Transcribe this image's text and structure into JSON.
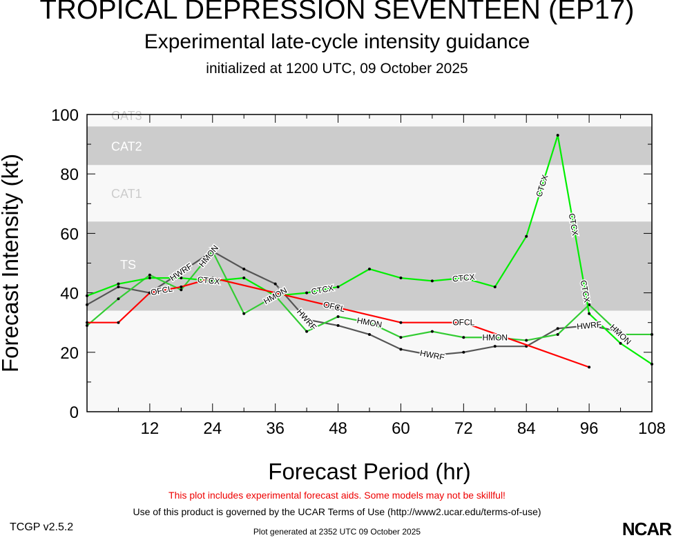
{
  "header": {
    "title": "TROPICAL DEPRESSION SEVENTEEN (EP17)",
    "subtitle": "Experimental late-cycle intensity guidance",
    "init": "initialized at 1200 UTC, 09 October 2025"
  },
  "footer": {
    "warning": "This plot includes experimental forecast aids. Some models may not be skillful!",
    "terms": "Use of this product is governed by the UCAR Terms of Use (http://www2.ucar.edu/terms-of-use)",
    "generated": "Plot generated at 2352 UTC   09 October 2025",
    "version": "TCGP v2.5.2",
    "logo": "NCAR"
  },
  "chart_data": {
    "type": "line",
    "xlabel": "Forecast Period (hr)",
    "ylabel": "Forecast Intensity (kt)",
    "xlim": [
      0,
      108
    ],
    "ylim": [
      0,
      100
    ],
    "xticks": [
      12,
      24,
      36,
      48,
      60,
      72,
      84,
      96,
      108
    ],
    "yticks": [
      0,
      20,
      40,
      60,
      80,
      100
    ],
    "bands": [
      {
        "label": "TS",
        "from": 34,
        "to": 64,
        "color": "#cccccc"
      },
      {
        "label": "CAT1",
        "from": 64,
        "to": 83,
        "color": "#f8f8f8"
      },
      {
        "label": "CAT2",
        "from": 83,
        "to": 96,
        "color": "#cccccc"
      },
      {
        "label": "CAT3",
        "from": 96,
        "to": 100,
        "color": "#f8f8f8"
      }
    ],
    "x": [
      0,
      6,
      12,
      18,
      24,
      30,
      36,
      42,
      48,
      54,
      60,
      66,
      72,
      78,
      84,
      90,
      96,
      102,
      108
    ],
    "series": [
      {
        "name": "HWRF",
        "color": "#555555",
        "values": [
          36,
          42,
          40,
          47,
          54,
          48,
          43,
          31,
          29,
          26,
          21,
          19,
          20,
          22,
          22,
          28,
          29,
          27,
          null
        ],
        "label_at": [
          18,
          42,
          66,
          96
        ]
      },
      {
        "name": "HMON",
        "color": "#33cc33",
        "values": [
          29,
          38,
          46,
          41,
          54,
          33,
          39,
          27,
          32,
          30,
          25,
          27,
          25,
          25,
          24,
          26,
          36,
          26,
          26
        ],
        "label_at": [
          18,
          36,
          54,
          78,
          102
        ]
      },
      {
        "name": "CTCX",
        "color": "#00ee00",
        "values": [
          39,
          43,
          45,
          45,
          44,
          45,
          39,
          40,
          42,
          48,
          45,
          44,
          45,
          42,
          59,
          93,
          33,
          23,
          16
        ],
        "label_at": [
          21,
          45,
          72,
          87,
          93,
          102
        ]
      },
      {
        "name": "OFCL",
        "color": "#ff0000",
        "values": [
          30,
          30,
          40,
          42,
          45,
          null,
          40,
          null,
          35,
          null,
          30,
          null,
          30,
          null,
          null,
          null,
          15,
          null,
          null
        ],
        "label_at": [
          21,
          45,
          72
        ]
      }
    ]
  }
}
